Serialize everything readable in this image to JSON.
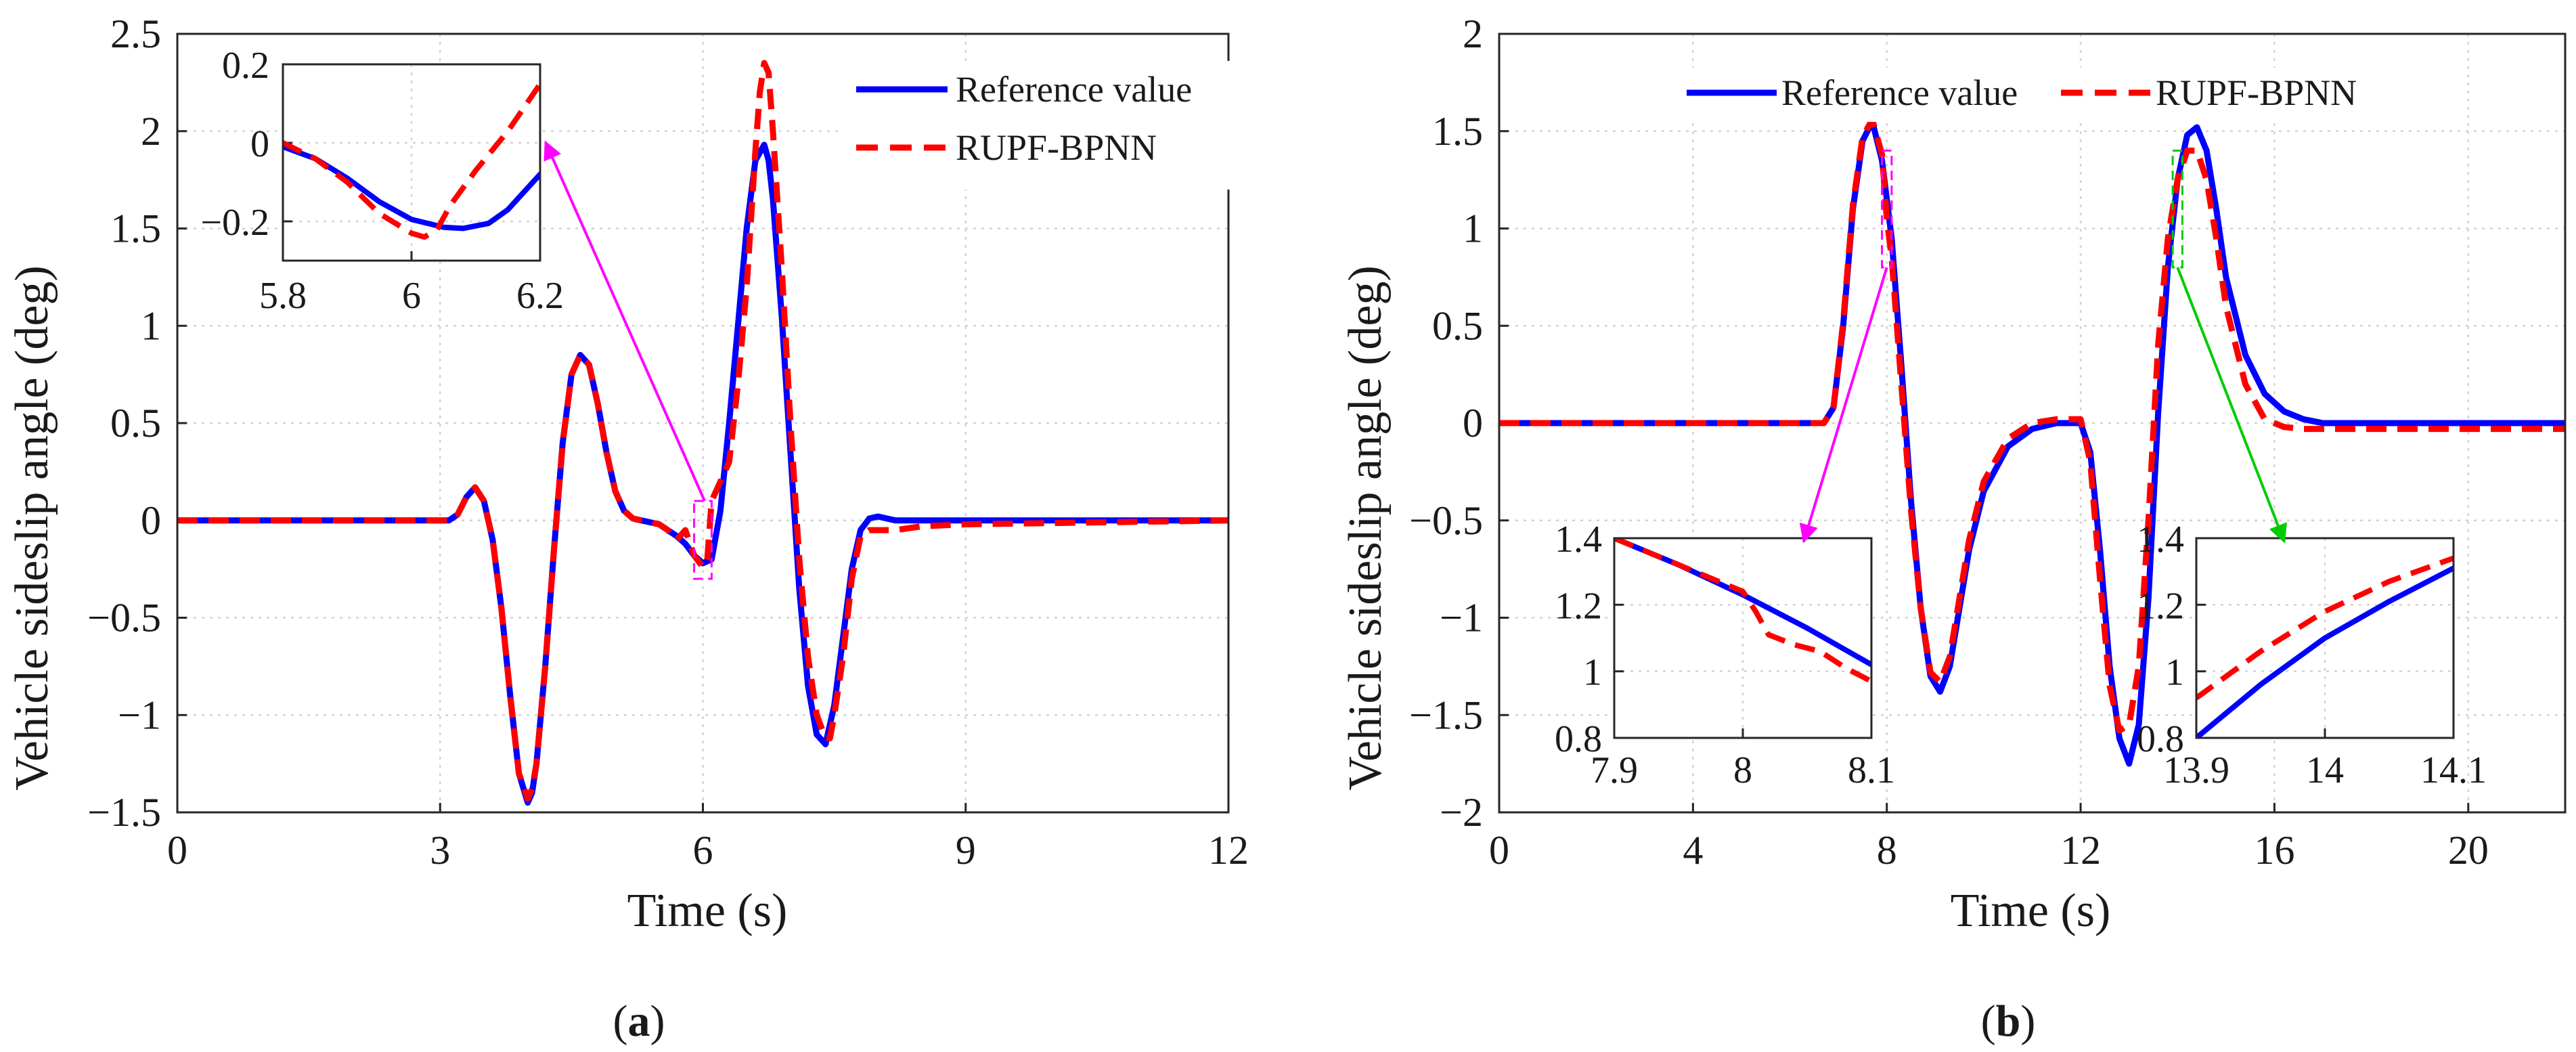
{
  "chart_data": [
    {
      "id": "a",
      "type": "line",
      "caption_letter": "a",
      "xlabel": "Time (s)",
      "ylabel": "Vehicle sideslip angle (deg)",
      "xlim": [
        0,
        12
      ],
      "ylim": [
        -1.5,
        2.5
      ],
      "xticks": [
        0,
        3,
        6,
        9,
        12
      ],
      "xtick_labels": [
        "0",
        "3",
        "6",
        "9",
        "12"
      ],
      "yticks": [
        -1.5,
        -1,
        -0.5,
        0,
        0.5,
        1,
        1.5,
        2,
        2.5
      ],
      "ytick_labels": [
        "−1.5",
        "−1",
        "−0.5",
        "0",
        "0.5",
        "1",
        "1.5",
        "2",
        "2.5"
      ],
      "grid": true,
      "legend_position": "top-right",
      "series": [
        {
          "name": "Reference value",
          "color": "#0000ff",
          "style": "solid",
          "x": [
            0,
            3.1,
            3.2,
            3.3,
            3.4,
            3.5,
            3.6,
            3.7,
            3.8,
            3.9,
            4.0,
            4.05,
            4.1,
            4.2,
            4.3,
            4.4,
            4.5,
            4.6,
            4.7,
            4.8,
            4.9,
            5.0,
            5.1,
            5.2,
            5.3,
            5.4,
            5.5,
            5.6,
            5.7,
            5.8,
            5.9,
            6.0,
            6.1,
            6.2,
            6.3,
            6.4,
            6.5,
            6.6,
            6.7,
            6.75,
            6.8,
            6.9,
            7.0,
            7.1,
            7.2,
            7.3,
            7.4,
            7.5,
            7.6,
            7.7,
            7.8,
            7.9,
            8.0,
            8.2,
            8.5,
            9.0,
            12
          ],
          "y": [
            0,
            0,
            0.03,
            0.12,
            0.17,
            0.1,
            -0.1,
            -0.45,
            -0.9,
            -1.3,
            -1.45,
            -1.4,
            -1.25,
            -0.75,
            -0.15,
            0.4,
            0.75,
            0.85,
            0.8,
            0.6,
            0.35,
            0.15,
            0.05,
            0.01,
            0.0,
            -0.01,
            -0.02,
            -0.05,
            -0.08,
            -0.12,
            -0.18,
            -0.22,
            -0.2,
            0.05,
            0.5,
            1.0,
            1.5,
            1.85,
            1.93,
            1.85,
            1.65,
            1.05,
            0.35,
            -0.35,
            -0.85,
            -1.1,
            -1.15,
            -0.95,
            -0.6,
            -0.25,
            -0.05,
            0.01,
            0.02,
            0.0,
            0.0,
            0.0,
            0.0
          ]
        },
        {
          "name": "RUPF-BPNN",
          "color": "#ff0000",
          "style": "dashed",
          "x": [
            0,
            3.1,
            3.2,
            3.3,
            3.4,
            3.5,
            3.6,
            3.7,
            3.8,
            3.9,
            4.0,
            4.05,
            4.1,
            4.2,
            4.3,
            4.4,
            4.5,
            4.6,
            4.7,
            4.8,
            4.9,
            5.0,
            5.1,
            5.2,
            5.3,
            5.4,
            5.5,
            5.6,
            5.7,
            5.8,
            5.9,
            6.0,
            6.05,
            6.1,
            6.2,
            6.3,
            6.4,
            6.5,
            6.6,
            6.65,
            6.7,
            6.75,
            6.8,
            6.9,
            7.0,
            7.1,
            7.2,
            7.3,
            7.4,
            7.45,
            7.5,
            7.6,
            7.7,
            7.8,
            7.9,
            8.0,
            8.2,
            8.5,
            9.0,
            12
          ],
          "y": [
            0,
            0,
            0.03,
            0.12,
            0.17,
            0.1,
            -0.1,
            -0.45,
            -0.9,
            -1.3,
            -1.43,
            -1.38,
            -1.25,
            -0.75,
            -0.15,
            0.4,
            0.75,
            0.85,
            0.8,
            0.6,
            0.35,
            0.15,
            0.05,
            0.01,
            0.0,
            -0.01,
            -0.02,
            -0.05,
            -0.1,
            -0.05,
            -0.18,
            -0.24,
            -0.2,
            0.1,
            0.2,
            0.3,
            0.7,
            1.2,
            1.9,
            2.2,
            2.35,
            2.3,
            2.0,
            1.3,
            0.5,
            -0.2,
            -0.7,
            -1.0,
            -1.12,
            -1.12,
            -1.0,
            -0.7,
            -0.3,
            -0.08,
            -0.05,
            -0.05,
            -0.05,
            -0.03,
            -0.02,
            0.0
          ]
        }
      ],
      "annotations": [
        {
          "type": "zoom-box",
          "color": "#ff00ff",
          "x_range": [
            5.8,
            6.2
          ],
          "y_range": [
            -0.3,
            0.1
          ]
        },
        {
          "type": "arrow",
          "color": "#ff00ff",
          "from_data": [
            6.02,
            0.1
          ],
          "to": "inset"
        }
      ],
      "inset": {
        "xlim": [
          5.8,
          6.2
        ],
        "ylim": [
          -0.3,
          0.2
        ],
        "xticks": [
          5.8,
          6,
          6.2
        ],
        "xtick_labels": [
          "5.8",
          "6",
          "6.2"
        ],
        "yticks": [
          -0.2,
          0,
          0.2
        ],
        "ytick_labels": [
          "−0.2",
          "0",
          "0.2"
        ],
        "series": [
          {
            "name": "Reference value",
            "color": "#0000ff",
            "style": "solid",
            "x": [
              5.8,
              5.85,
              5.9,
              5.95,
              6.0,
              6.05,
              6.08,
              6.12,
              6.15,
              6.2
            ],
            "y": [
              -0.01,
              -0.04,
              -0.09,
              -0.15,
              -0.195,
              -0.215,
              -0.218,
              -0.205,
              -0.17,
              -0.08
            ]
          },
          {
            "name": "RUPF-BPNN",
            "color": "#ff0000",
            "style": "dashed",
            "x": [
              5.8,
              5.85,
              5.9,
              5.95,
              6.0,
              6.02,
              6.04,
              6.06,
              6.1,
              6.15,
              6.2
            ],
            "y": [
              0.0,
              -0.04,
              -0.1,
              -0.18,
              -0.23,
              -0.24,
              -0.22,
              -0.16,
              -0.07,
              0.03,
              0.15
            ]
          }
        ]
      }
    },
    {
      "id": "b",
      "type": "line",
      "caption_letter": "b",
      "xlabel": "Time (s)",
      "ylabel": "Vehicle sideslip angle (deg)",
      "xlim": [
        0,
        22
      ],
      "ylim": [
        -2,
        2
      ],
      "xticks": [
        0,
        4,
        8,
        12,
        16,
        20
      ],
      "xtick_labels": [
        "0",
        "4",
        "8",
        "12",
        "16",
        "20"
      ],
      "yticks": [
        -2,
        -1.5,
        -1,
        -0.5,
        0,
        0.5,
        1,
        1.5,
        2
      ],
      "ytick_labels": [
        "−2",
        "−1.5",
        "−1",
        "−0.5",
        "0",
        "0.5",
        "1",
        "1.5",
        "2"
      ],
      "grid": true,
      "legend_position": "top-center",
      "series": [
        {
          "name": "Reference value",
          "color": "#0000ff",
          "style": "solid",
          "x": [
            0,
            6.7,
            6.9,
            7.1,
            7.3,
            7.5,
            7.7,
            7.9,
            8.1,
            8.3,
            8.5,
            8.7,
            8.9,
            9.1,
            9.3,
            9.5,
            9.7,
            10.0,
            10.5,
            11.0,
            11.5,
            12.0,
            12.2,
            12.4,
            12.6,
            12.8,
            13.0,
            13.2,
            13.4,
            13.6,
            13.8,
            14.0,
            14.2,
            14.4,
            14.6,
            14.8,
            15.0,
            15.4,
            15.8,
            16.2,
            16.6,
            17.0,
            22
          ],
          "y": [
            0,
            0,
            0.08,
            0.5,
            1.1,
            1.45,
            1.55,
            1.35,
            0.95,
            0.3,
            -0.4,
            -0.95,
            -1.3,
            -1.38,
            -1.25,
            -0.95,
            -0.65,
            -0.35,
            -0.12,
            -0.03,
            0.0,
            0.0,
            -0.15,
            -0.65,
            -1.25,
            -1.62,
            -1.75,
            -1.55,
            -0.9,
            0.05,
            0.8,
            1.25,
            1.48,
            1.52,
            1.4,
            1.1,
            0.75,
            0.35,
            0.15,
            0.06,
            0.02,
            0.0,
            0.0
          ]
        },
        {
          "name": "RUPF-BPNN",
          "color": "#ff0000",
          "style": "dashed",
          "x": [
            0,
            6.7,
            6.9,
            7.1,
            7.3,
            7.5,
            7.7,
            7.9,
            8.0,
            8.1,
            8.3,
            8.5,
            8.7,
            8.9,
            9.1,
            9.3,
            9.5,
            9.7,
            10.0,
            10.5,
            11.0,
            11.5,
            12.0,
            12.2,
            12.4,
            12.6,
            12.8,
            13.0,
            13.2,
            13.4,
            13.6,
            13.8,
            14.0,
            14.2,
            14.4,
            14.6,
            14.8,
            15.0,
            15.4,
            15.8,
            16.2,
            16.6,
            17.0,
            22
          ],
          "y": [
            0,
            0,
            0.08,
            0.52,
            1.12,
            1.47,
            1.56,
            1.38,
            1.05,
            0.85,
            0.2,
            -0.45,
            -0.95,
            -1.28,
            -1.33,
            -1.2,
            -0.9,
            -0.6,
            -0.3,
            -0.08,
            0.0,
            0.02,
            0.02,
            -0.2,
            -0.8,
            -1.35,
            -1.58,
            -1.55,
            -1.25,
            -0.5,
            0.4,
            0.95,
            1.25,
            1.4,
            1.4,
            1.25,
            0.95,
            0.6,
            0.2,
            0.02,
            -0.02,
            -0.03,
            -0.03,
            -0.03
          ]
        }
      ],
      "annotations": [
        {
          "type": "zoom-box",
          "color": "#ff00ff",
          "x_range": [
            7.9,
            8.1
          ],
          "y_range": [
            0.8,
            1.4
          ]
        },
        {
          "type": "zoom-box",
          "color": "#00cc00",
          "x_range": [
            13.9,
            14.1
          ],
          "y_range": [
            0.8,
            1.4
          ]
        },
        {
          "type": "arrow",
          "color": "#ff00ff",
          "from_data": [
            8.0,
            0.8
          ],
          "to": "inset-1"
        },
        {
          "type": "arrow",
          "color": "#00cc00",
          "from_data": [
            14.0,
            0.8
          ],
          "to": "inset-2"
        }
      ],
      "insets": [
        {
          "xlim": [
            7.9,
            8.1
          ],
          "ylim": [
            0.8,
            1.4
          ],
          "xticks": [
            7.9,
            8,
            8.1
          ],
          "xtick_labels": [
            "7.9",
            "8",
            "8.1"
          ],
          "yticks": [
            0.8,
            1,
            1.2,
            1.4
          ],
          "ytick_labels": [
            "0.8",
            "1",
            "1.2",
            "1.4"
          ],
          "series": [
            {
              "name": "Reference value",
              "color": "#0000ff",
              "style": "solid",
              "x": [
                7.9,
                7.95,
                8.0,
                8.05,
                8.1
              ],
              "y": [
                1.4,
                1.32,
                1.23,
                1.13,
                1.02
              ]
            },
            {
              "name": "RUPF-BPNN",
              "color": "#ff0000",
              "style": "dashed",
              "x": [
                7.9,
                7.95,
                8.0,
                8.01,
                8.02,
                8.04,
                8.06,
                8.08,
                8.1
              ],
              "y": [
                1.4,
                1.32,
                1.24,
                1.18,
                1.11,
                1.08,
                1.06,
                1.01,
                0.97
              ]
            }
          ]
        },
        {
          "xlim": [
            13.9,
            14.1
          ],
          "ylim": [
            0.8,
            1.4
          ],
          "xticks": [
            13.9,
            14,
            14.1
          ],
          "xtick_labels": [
            "13.9",
            "14",
            "14.1"
          ],
          "yticks": [
            0.8,
            1,
            1.2,
            1.4
          ],
          "ytick_labels": [
            "0.8",
            "1",
            "1.2",
            "1.4"
          ],
          "series": [
            {
              "name": "Reference value",
              "color": "#0000ff",
              "style": "solid",
              "x": [
                13.9,
                13.95,
                14.0,
                14.05,
                14.1
              ],
              "y": [
                0.8,
                0.96,
                1.1,
                1.21,
                1.31
              ]
            },
            {
              "name": "RUPF-BPNN",
              "color": "#ff0000",
              "style": "dashed",
              "x": [
                13.9,
                13.95,
                14.0,
                14.05,
                14.1
              ],
              "y": [
                0.92,
                1.06,
                1.18,
                1.27,
                1.34
              ]
            }
          ]
        }
      ]
    }
  ]
}
